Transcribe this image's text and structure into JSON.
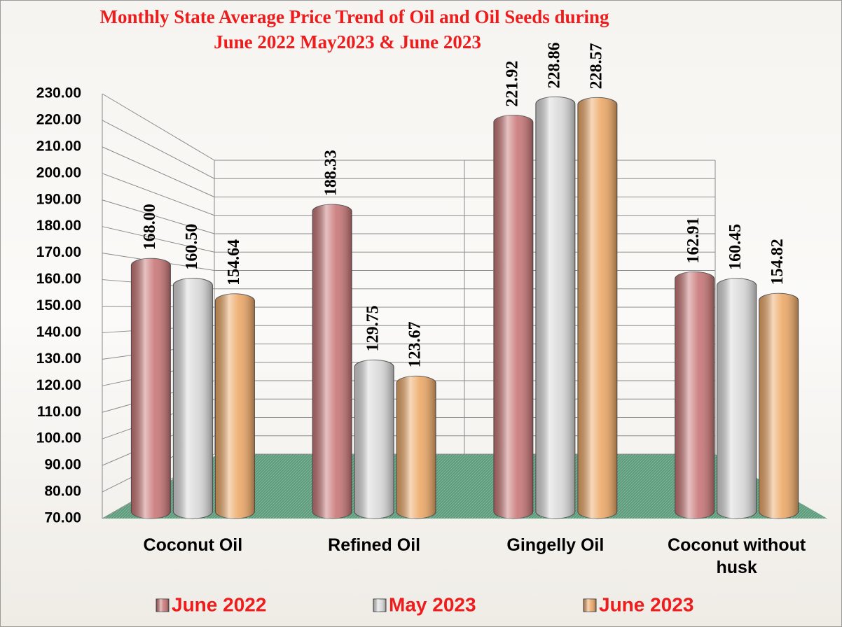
{
  "chart_data": {
    "type": "bar",
    "title": "Monthly State Average Price Trend of Oil and Oil Seeds during",
    "subtitle": "June 2022  May2023 &  June 2023",
    "categories": [
      "Coconut Oil",
      "Refined Oil",
      "Gingelly Oil",
      "Coconut without husk"
    ],
    "series": [
      {
        "name": "June 2022",
        "color": "#c97676",
        "values": [
          168.0,
          188.33,
          221.92,
          162.91
        ],
        "value_labels": [
          "168.00",
          "188.33",
          "221.92",
          "162.91"
        ]
      },
      {
        "name": "May 2023",
        "color": "#d9d9d9",
        "values": [
          160.5,
          129.75,
          228.86,
          160.45
        ],
        "value_labels": [
          "160.50",
          "129.75",
          "228.86",
          "160.45"
        ]
      },
      {
        "name": "June 2023",
        "color": "#eda866",
        "values": [
          154.64,
          123.67,
          228.57,
          154.82
        ],
        "value_labels": [
          "154.64",
          "123.67",
          "228.57",
          "154.82"
        ]
      }
    ],
    "ylim": [
      70,
      230
    ],
    "yticks": [
      {
        "value": 70,
        "label": "70.00"
      },
      {
        "value": 80,
        "label": "80.00"
      },
      {
        "value": 90,
        "label": "90.00"
      },
      {
        "value": 100,
        "label": "100.00"
      },
      {
        "value": 110,
        "label": "110.00"
      },
      {
        "value": 120,
        "label": "120.00"
      },
      {
        "value": 130,
        "label": "130.00"
      },
      {
        "value": 140,
        "label": "140.00"
      },
      {
        "value": 150,
        "label": "150.00"
      },
      {
        "value": 160,
        "label": "160.00"
      },
      {
        "value": 170,
        "label": "170.00"
      },
      {
        "value": 180,
        "label": "180.00"
      },
      {
        "value": 190,
        "label": "190.00"
      },
      {
        "value": 200,
        "label": "200.00"
      },
      {
        "value": 210,
        "label": "210.00"
      },
      {
        "value": 220,
        "label": "220.00"
      },
      {
        "value": 230,
        "label": "230.00"
      }
    ],
    "grid": true,
    "legend": "bottom"
  }
}
